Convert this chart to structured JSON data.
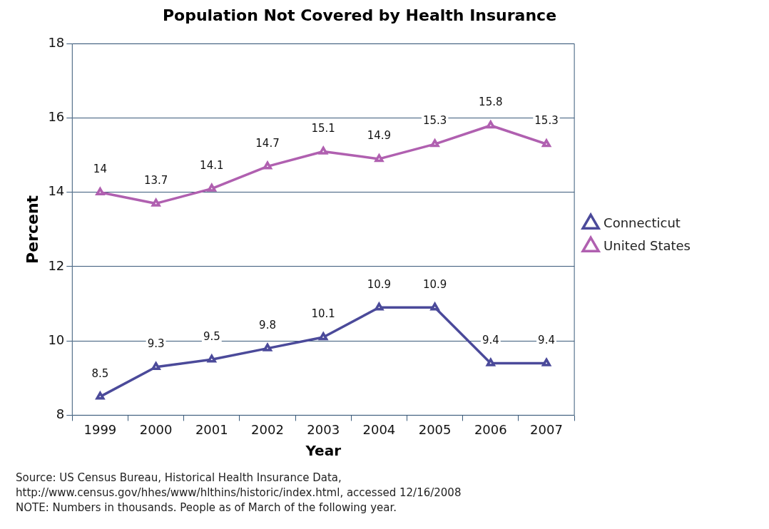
{
  "chart_data": {
    "type": "line",
    "title": "Population Not Covered by Health Insurance",
    "xlabel": "Year",
    "ylabel": "Percent",
    "categories": [
      "1999",
      "2000",
      "2001",
      "2002",
      "2003",
      "2004",
      "2005",
      "2006",
      "2007"
    ],
    "series": [
      {
        "name": "Connecticut",
        "color": "#4b4a9a",
        "values": [
          8.5,
          9.3,
          9.5,
          9.8,
          10.1,
          10.9,
          10.9,
          9.4,
          9.4
        ]
      },
      {
        "name": "United States",
        "color": "#b060b0",
        "values": [
          14,
          13.7,
          14.1,
          14.7,
          15.1,
          14.9,
          15.3,
          15.8,
          15.3
        ]
      }
    ],
    "ylim": [
      8,
      18
    ],
    "yticks": [
      8,
      10,
      12,
      14,
      16,
      18
    ],
    "grid": "y",
    "legend": "right",
    "marker": "triangle",
    "line_style": "solid",
    "data_labels": true,
    "annotations": [
      "Source: US Census Bureau, Historical Health Insurance Data,",
      "http://www.census.gov/hhes/www/hlthins/historic/index.html, accessed 12/16/2008",
      "NOTE: Numbers in thousands.  People as of March of the following year."
    ]
  }
}
